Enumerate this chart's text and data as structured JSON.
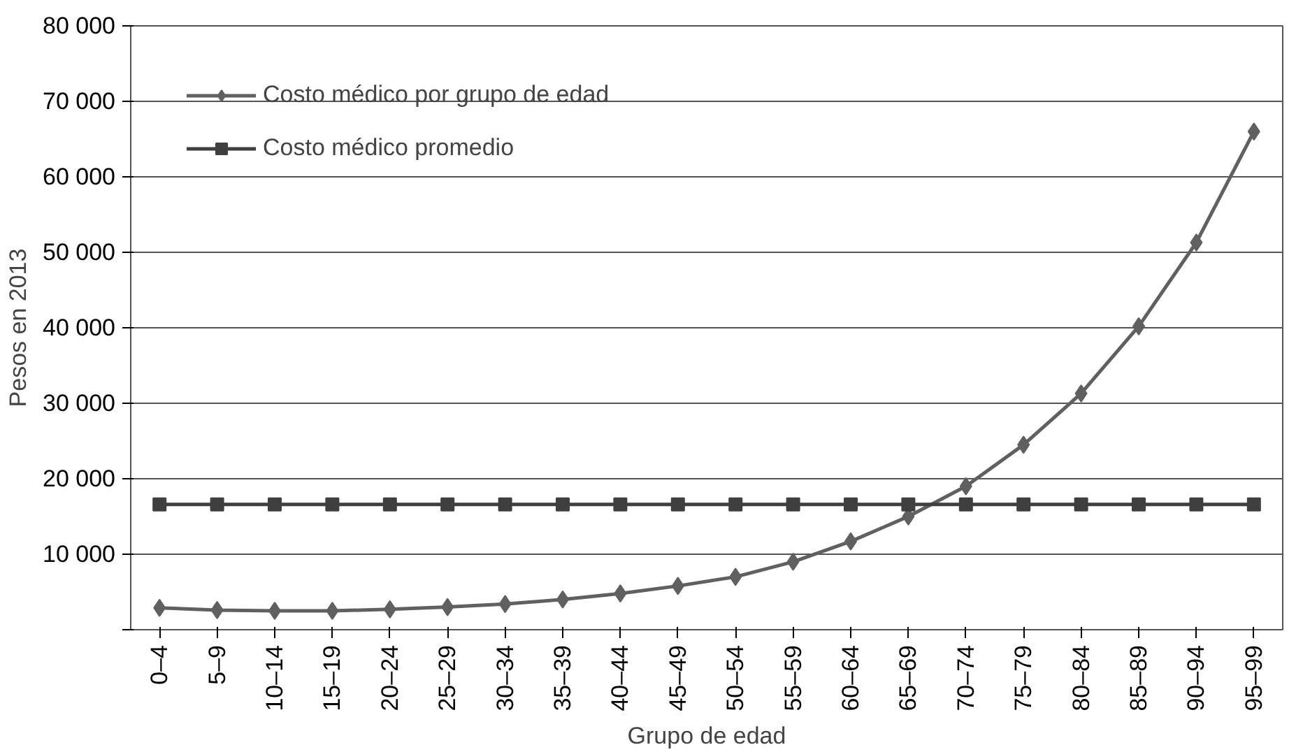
{
  "chart_data": {
    "type": "line",
    "xlabel": "Grupo de edad",
    "ylabel": "Pesos en 2013",
    "categories": [
      "0–4",
      "5–9",
      "10–14",
      "15–19",
      "20–24",
      "25–29",
      "30–34",
      "35–39",
      "40–44",
      "45–49",
      "50–54",
      "55–59",
      "60–64",
      "65–69",
      "70–74",
      "75–79",
      "80–84",
      "85–89",
      "90–94",
      "95–99"
    ],
    "series": [
      {
        "name": "Costo médico por grupo de edad",
        "color": "#606060",
        "marker": "diamond",
        "values": [
          2900,
          2600,
          2500,
          2500,
          2700,
          3000,
          3400,
          4000,
          4800,
          5800,
          7000,
          9000,
          11700,
          15000,
          19000,
          24500,
          31300,
          40200,
          51300,
          66000
        ]
      },
      {
        "name": "Costo médico promedio",
        "color": "#3f3f3f",
        "marker": "square",
        "values": [
          16600,
          16600,
          16600,
          16600,
          16600,
          16600,
          16600,
          16600,
          16600,
          16600,
          16600,
          16600,
          16600,
          16600,
          16600,
          16600,
          16600,
          16600,
          16600,
          16600
        ]
      }
    ],
    "ylim": [
      0,
      80000
    ],
    "yticks": [
      {
        "value": 0,
        "label": null
      },
      {
        "value": 10000,
        "label": "10 000"
      },
      {
        "value": 20000,
        "label": "20 000"
      },
      {
        "value": 30000,
        "label": "30 000"
      },
      {
        "value": 40000,
        "label": "40 000"
      },
      {
        "value": 50000,
        "label": "50 000"
      },
      {
        "value": 60000,
        "label": "60 000"
      },
      {
        "value": 70000,
        "label": "70 000"
      },
      {
        "value": 80000,
        "label": "80 000"
      }
    ],
    "grid": "y",
    "legend": "top left",
    "line_style": "solid"
  }
}
